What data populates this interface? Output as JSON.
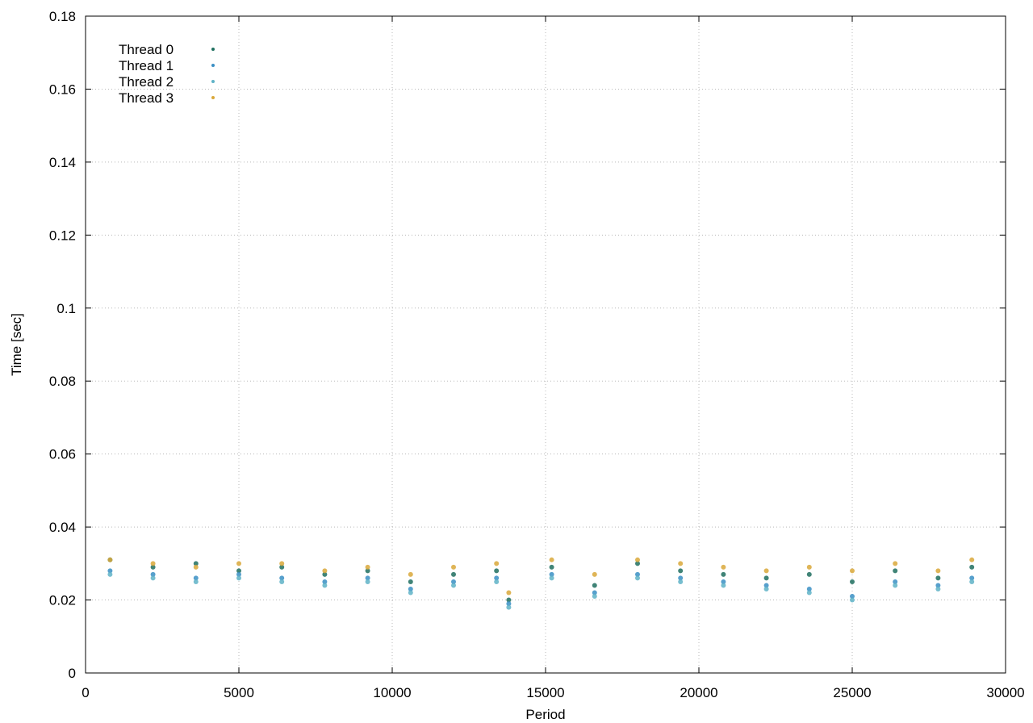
{
  "chart_data": {
    "type": "scatter",
    "title": "",
    "xlabel": "Period",
    "ylabel": "Time [sec]",
    "xlim": [
      0,
      30000
    ],
    "ylim": [
      0,
      0.18
    ],
    "x_ticks": [
      0,
      5000,
      10000,
      15000,
      20000,
      25000,
      30000
    ],
    "y_ticks": [
      0,
      0.02,
      0.04,
      0.06,
      0.08,
      0.1,
      0.12,
      0.14,
      0.16,
      0.18
    ],
    "x_tick_labels": [
      "0",
      "5000",
      "10000",
      "15000",
      "20000",
      "25000",
      "30000"
    ],
    "y_tick_labels": [
      "0",
      "0.02",
      "0.04",
      "0.06",
      "0.08",
      "0.1",
      "0.12",
      "0.14",
      "0.16",
      "0.18"
    ],
    "grid": true,
    "legend_position": "top-left",
    "series": [
      {
        "name": "Thread 0",
        "color": "#1f6f5f",
        "x": [
          800,
          2200,
          3600,
          5000,
          6400,
          7800,
          9200,
          10600,
          12000,
          13400,
          13800,
          15200,
          16600,
          18000,
          19400,
          20800,
          22200,
          23600,
          25000,
          26400,
          27800,
          28900
        ],
        "y": [
          0.031,
          0.029,
          0.03,
          0.028,
          0.029,
          0.027,
          0.028,
          0.025,
          0.027,
          0.028,
          0.02,
          0.029,
          0.024,
          0.03,
          0.028,
          0.027,
          0.026,
          0.027,
          0.025,
          0.028,
          0.026,
          0.029
        ]
      },
      {
        "name": "Thread 1",
        "color": "#3a8fc4",
        "x": [
          800,
          2200,
          3600,
          5000,
          6400,
          7800,
          9200,
          10600,
          12000,
          13400,
          13800,
          15200,
          16600,
          18000,
          19400,
          20800,
          22200,
          23600,
          25000,
          26400,
          27800,
          28900
        ],
        "y": [
          0.028,
          0.027,
          0.026,
          0.027,
          0.026,
          0.025,
          0.026,
          0.023,
          0.025,
          0.026,
          0.019,
          0.027,
          0.022,
          0.027,
          0.026,
          0.025,
          0.024,
          0.023,
          0.021,
          0.025,
          0.024,
          0.026
        ]
      },
      {
        "name": "Thread 2",
        "color": "#5fb3c7",
        "x": [
          800,
          2200,
          3600,
          5000,
          6400,
          7800,
          9200,
          10600,
          12000,
          13400,
          13800,
          15200,
          16600,
          18000,
          19400,
          20800,
          22200,
          23600,
          25000,
          26400,
          27800,
          28900
        ],
        "y": [
          0.027,
          0.026,
          0.025,
          0.026,
          0.025,
          0.024,
          0.025,
          0.022,
          0.024,
          0.025,
          0.018,
          0.026,
          0.021,
          0.026,
          0.025,
          0.024,
          0.023,
          0.022,
          0.02,
          0.024,
          0.023,
          0.025
        ]
      },
      {
        "name": "Thread 3",
        "color": "#d9a83a",
        "x": [
          800,
          2200,
          3600,
          5000,
          6400,
          7800,
          9200,
          10600,
          12000,
          13400,
          13800,
          15200,
          16600,
          18000,
          19400,
          20800,
          22200,
          23600,
          25000,
          26400,
          27800,
          28900
        ],
        "y": [
          0.031,
          0.03,
          0.029,
          0.03,
          0.03,
          0.028,
          0.029,
          0.027,
          0.029,
          0.03,
          0.022,
          0.031,
          0.027,
          0.031,
          0.03,
          0.029,
          0.028,
          0.029,
          0.028,
          0.03,
          0.028,
          0.031
        ]
      }
    ]
  }
}
